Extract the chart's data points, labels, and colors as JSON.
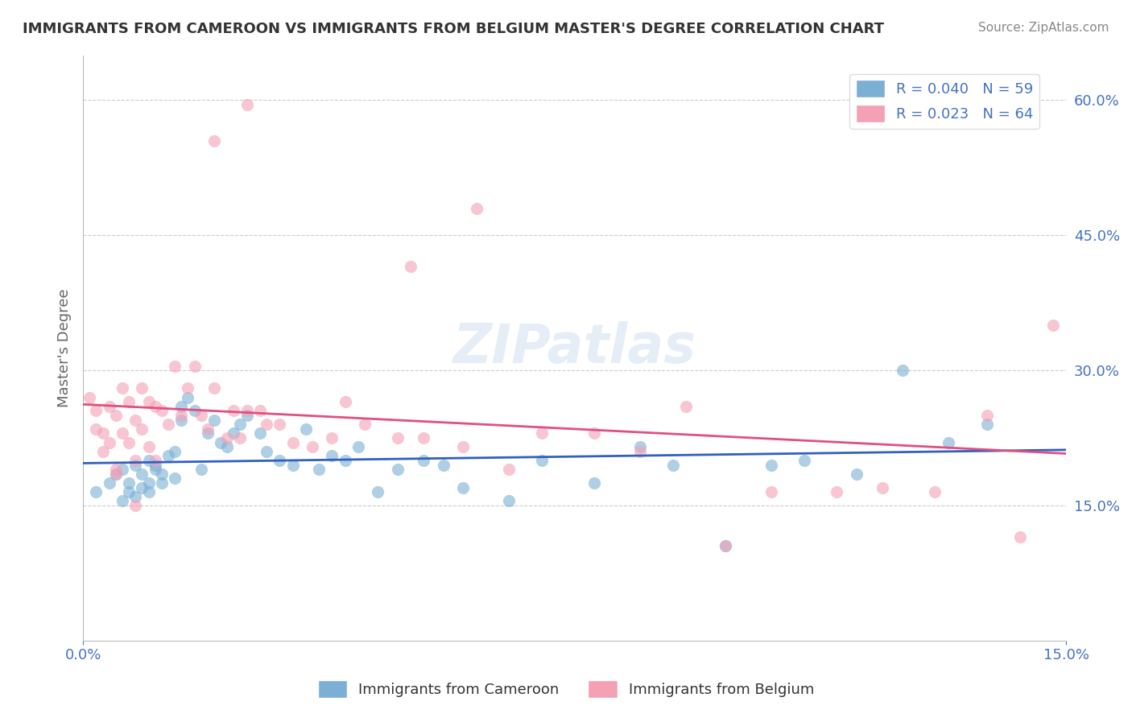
{
  "title": "IMMIGRANTS FROM CAMEROON VS IMMIGRANTS FROM BELGIUM MASTER'S DEGREE CORRELATION CHART",
  "source": "Source: ZipAtlas.com",
  "xlabel": "",
  "ylabel": "Master's Degree",
  "xlim": [
    0.0,
    0.15
  ],
  "ylim": [
    0.0,
    0.65
  ],
  "xticks": [
    0.0,
    0.15
  ],
  "xtick_labels": [
    "0.0%",
    "15.0%"
  ],
  "ytick_labels": [
    "15.0%",
    "30.0%",
    "45.0%",
    "60.0%"
  ],
  "yticks": [
    0.15,
    0.3,
    0.45,
    0.6
  ],
  "grid_color": "#cccccc",
  "background_color": "#ffffff",
  "title_color": "#333333",
  "axis_label_color": "#4472c4",
  "watermark": "ZIPatlas",
  "legend_r1": "R = 0.040",
  "legend_n1": "N = 59",
  "legend_r2": "R = 0.023",
  "legend_n2": "N = 64",
  "color_blue": "#7bafd4",
  "color_pink": "#f4a0b5",
  "trend_blue": "#3060c0",
  "trend_pink": "#e05080",
  "blue_x": [
    0.002,
    0.004,
    0.005,
    0.006,
    0.006,
    0.007,
    0.007,
    0.008,
    0.008,
    0.009,
    0.009,
    0.01,
    0.01,
    0.01,
    0.011,
    0.011,
    0.012,
    0.012,
    0.013,
    0.014,
    0.014,
    0.015,
    0.015,
    0.016,
    0.017,
    0.018,
    0.019,
    0.02,
    0.021,
    0.022,
    0.023,
    0.024,
    0.025,
    0.027,
    0.028,
    0.03,
    0.032,
    0.034,
    0.036,
    0.038,
    0.04,
    0.042,
    0.045,
    0.048,
    0.052,
    0.055,
    0.058,
    0.065,
    0.07,
    0.078,
    0.085,
    0.09,
    0.098,
    0.105,
    0.11,
    0.118,
    0.125,
    0.132,
    0.138
  ],
  "blue_y": [
    0.165,
    0.175,
    0.185,
    0.19,
    0.155,
    0.175,
    0.165,
    0.195,
    0.16,
    0.185,
    0.17,
    0.2,
    0.175,
    0.165,
    0.19,
    0.195,
    0.185,
    0.175,
    0.205,
    0.18,
    0.21,
    0.245,
    0.26,
    0.27,
    0.255,
    0.19,
    0.23,
    0.245,
    0.22,
    0.215,
    0.23,
    0.24,
    0.25,
    0.23,
    0.21,
    0.2,
    0.195,
    0.235,
    0.19,
    0.205,
    0.2,
    0.215,
    0.165,
    0.19,
    0.2,
    0.195,
    0.17,
    0.155,
    0.2,
    0.175,
    0.215,
    0.195,
    0.105,
    0.195,
    0.2,
    0.185,
    0.3,
    0.22,
    0.24
  ],
  "pink_x": [
    0.001,
    0.002,
    0.002,
    0.003,
    0.003,
    0.004,
    0.004,
    0.005,
    0.005,
    0.006,
    0.006,
    0.007,
    0.007,
    0.008,
    0.008,
    0.009,
    0.009,
    0.01,
    0.01,
    0.011,
    0.011,
    0.012,
    0.013,
    0.014,
    0.015,
    0.016,
    0.017,
    0.018,
    0.019,
    0.02,
    0.022,
    0.023,
    0.024,
    0.025,
    0.027,
    0.028,
    0.03,
    0.032,
    0.035,
    0.038,
    0.04,
    0.043,
    0.048,
    0.052,
    0.058,
    0.065,
    0.07,
    0.078,
    0.085,
    0.092,
    0.098,
    0.105,
    0.115,
    0.122,
    0.13,
    0.138,
    0.143,
    0.148,
    0.05,
    0.06,
    0.02,
    0.025,
    0.005,
    0.008
  ],
  "pink_y": [
    0.27,
    0.235,
    0.255,
    0.23,
    0.21,
    0.26,
    0.22,
    0.25,
    0.19,
    0.28,
    0.23,
    0.265,
    0.22,
    0.245,
    0.2,
    0.28,
    0.235,
    0.265,
    0.215,
    0.26,
    0.2,
    0.255,
    0.24,
    0.305,
    0.25,
    0.28,
    0.305,
    0.25,
    0.235,
    0.28,
    0.225,
    0.255,
    0.225,
    0.255,
    0.255,
    0.24,
    0.24,
    0.22,
    0.215,
    0.225,
    0.265,
    0.24,
    0.225,
    0.225,
    0.215,
    0.19,
    0.23,
    0.23,
    0.21,
    0.26,
    0.105,
    0.165,
    0.165,
    0.17,
    0.165,
    0.25,
    0.115,
    0.35,
    0.415,
    0.48,
    0.555,
    0.595,
    0.185,
    0.15
  ]
}
